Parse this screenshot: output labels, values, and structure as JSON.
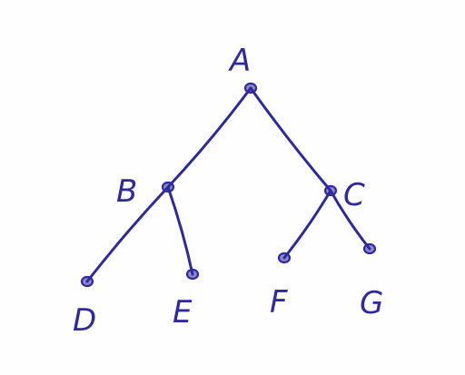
{
  "diagram": {
    "type": "tree",
    "ink_color": "#2e2a9c",
    "paper_color": "#fefefe",
    "nodes": [
      {
        "id": "A",
        "label": "A"
      },
      {
        "id": "B",
        "label": "B"
      },
      {
        "id": "C",
        "label": "C"
      },
      {
        "id": "D",
        "label": "D"
      },
      {
        "id": "E",
        "label": "E"
      },
      {
        "id": "F",
        "label": "F"
      },
      {
        "id": "G",
        "label": "G"
      }
    ],
    "edges": [
      {
        "from": "A",
        "to": "B"
      },
      {
        "from": "A",
        "to": "C"
      },
      {
        "from": "B",
        "to": "D"
      },
      {
        "from": "B",
        "to": "E"
      },
      {
        "from": "C",
        "to": "F"
      },
      {
        "from": "C",
        "to": "G"
      }
    ]
  }
}
